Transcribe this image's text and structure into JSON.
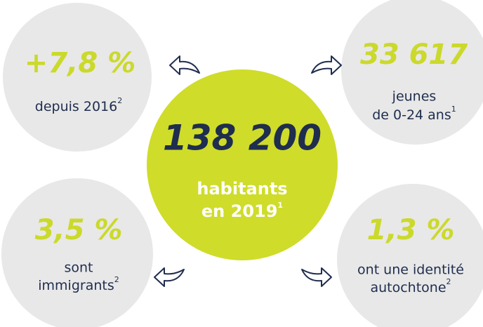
{
  "center": {
    "value": "138 200",
    "label": [
      "habitants",
      "en 2019"
    ],
    "note": "1"
  },
  "stats": [
    {
      "value": "+7,8 %",
      "label": [
        "depuis 2016"
      ],
      "note": "2"
    },
    {
      "value": "33 617",
      "label": [
        "jeunes",
        "de 0-24 ans"
      ],
      "note": "1"
    },
    {
      "value": "3,5 %",
      "label": [
        "sont",
        "immigrants"
      ],
      "note": "2"
    },
    {
      "value": "1,3 %",
      "label": [
        "ont une identité",
        "autochtone"
      ],
      "note": "2"
    }
  ]
}
